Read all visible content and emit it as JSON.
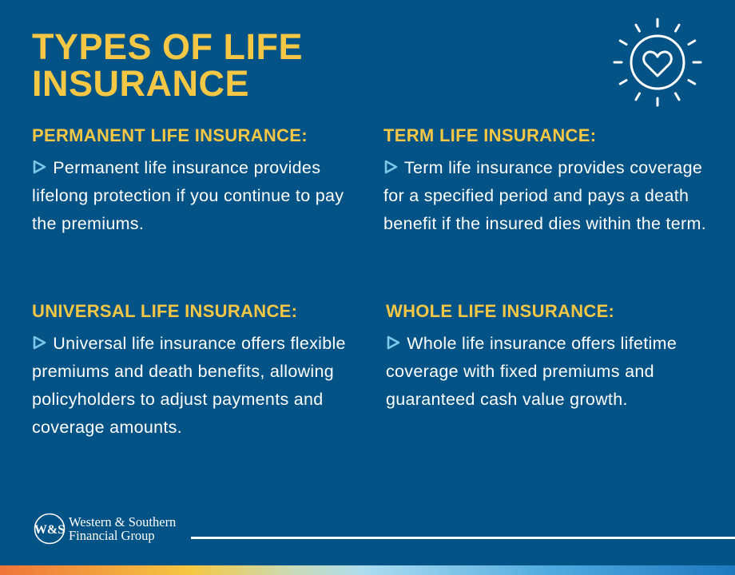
{
  "title": {
    "line1": "TYPES OF LIFE",
    "line2": "INSURANCE"
  },
  "sections": [
    {
      "heading": "PERMANENT LIFE INSURANCE:",
      "text": "Permanent life insurance provides lifelong protection if you continue to pay the premiums."
    },
    {
      "heading": "TERM LIFE INSURANCE:",
      "text": "Term life insurance provides coverage for a specified period and pays a death benefit if the insured dies within the term."
    },
    {
      "heading": "UNIVERSAL LIFE INSURANCE:",
      "text": "Universal life insurance offers flexible premiums and death benefits, allowing policyholders to adjust payments and coverage amounts."
    },
    {
      "heading": "WHOLE LIFE INSURANCE:",
      "text": "Whole life insurance offers lifetime coverage with fixed premiums and guaranteed cash value growth."
    }
  ],
  "logo": {
    "monogram": "W&S",
    "line1": "Western & Southern",
    "line2": "Financial Group"
  },
  "colors": {
    "background": "#035387",
    "accent": "#f5c744",
    "bullet": "#7cc8ea"
  },
  "icons": {
    "header": "sun-heart-icon",
    "bullet": "triangle-play-outline-icon"
  }
}
